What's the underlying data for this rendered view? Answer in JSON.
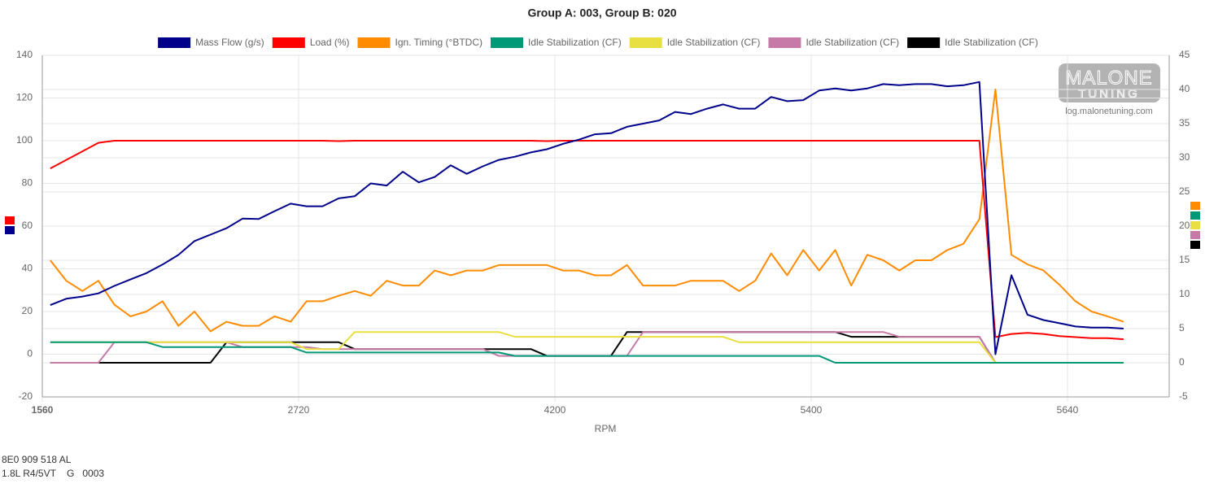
{
  "chart_data": {
    "type": "line",
    "title": "Group A: 003, Group B: 020",
    "x_label": "RPM",
    "categories": [
      "1560",
      null,
      null,
      null,
      null,
      null,
      null,
      null,
      null,
      null,
      null,
      null,
      null,
      null,
      null,
      null,
      "2720",
      null,
      null,
      null,
      null,
      null,
      null,
      null,
      null,
      null,
      null,
      null,
      null,
      null,
      null,
      null,
      "4200",
      null,
      null,
      null,
      null,
      null,
      null,
      null,
      null,
      null,
      null,
      null,
      null,
      null,
      null,
      null,
      "5400",
      null,
      null,
      null,
      null,
      null,
      null,
      null,
      null,
      null,
      null,
      null,
      null,
      null,
      null,
      null,
      "5640",
      null,
      null,
      null
    ],
    "ylim": [
      -20,
      140
    ],
    "yticks": [
      -20,
      0,
      20,
      40,
      60,
      80,
      100,
      120,
      140
    ],
    "y2lim": [
      -5,
      45
    ],
    "y2ticks": [
      -5,
      0,
      5,
      10,
      15,
      20,
      25,
      30,
      35,
      40,
      45
    ],
    "grid": true,
    "legend": "top",
    "series": [
      {
        "name": "Mass Flow (g/s)",
        "color": "#00008b",
        "values": [
          23,
          26,
          27,
          28.5,
          32,
          35,
          38,
          42,
          46.5,
          53,
          56,
          59,
          63.5,
          63.3,
          67,
          70.5,
          69.3,
          69.3,
          73,
          74,
          80,
          79,
          85.5,
          80.5,
          83,
          88.5,
          84.5,
          88,
          91,
          92.5,
          94.5,
          96,
          98.5,
          100.5,
          103,
          103.5,
          106.5,
          108,
          109.5,
          113.5,
          112.5,
          115,
          117,
          115,
          115,
          120.5,
          118.5,
          119,
          123.5,
          124.5,
          123.5,
          124.5,
          126.5,
          126,
          126.5,
          126.5,
          125.5,
          126,
          127.5,
          0,
          37,
          18.5,
          16,
          14.5,
          13,
          12.5,
          12.5,
          12
        ]
      },
      {
        "name": "Load (%)",
        "color": "#ff0000",
        "values": [
          87,
          91,
          95,
          99,
          100,
          100,
          100,
          100,
          100,
          100,
          100,
          100,
          100,
          100,
          100,
          100,
          100,
          100,
          99.8,
          100,
          100,
          100,
          100,
          100,
          100,
          100,
          100,
          100,
          100,
          100,
          100,
          99.8,
          100,
          100,
          100,
          100,
          100,
          100,
          100,
          100,
          100,
          100,
          100,
          100,
          100,
          100,
          100,
          100,
          100,
          100,
          100,
          100,
          100,
          100,
          100,
          100,
          100,
          100,
          100,
          8,
          9.5,
          10,
          9.5,
          8.5,
          8,
          7.5,
          7.5,
          7
        ]
      },
      {
        "name": "Ign. Timing (°BTDC)",
        "color": "#ff8c00",
        "axis": "y2",
        "values": [
          15,
          12,
          10.5,
          12,
          8.5,
          6.8,
          7.5,
          9,
          5.4,
          7.5,
          4.6,
          6,
          5.4,
          5.4,
          6.8,
          6,
          9,
          9,
          9.8,
          10.5,
          9.8,
          12,
          11.3,
          11.3,
          13.5,
          12.8,
          13.5,
          13.5,
          14.3,
          14.3,
          14.3,
          14.3,
          13.5,
          13.5,
          12.8,
          12.8,
          14.3,
          11.3,
          11.3,
          11.3,
          12,
          12,
          12,
          10.5,
          12,
          16,
          12.8,
          16.5,
          13.5,
          16.5,
          11.3,
          15.8,
          15,
          13.5,
          15,
          15,
          16.5,
          17.4,
          21,
          40,
          15.8,
          14.4,
          13.5,
          11.4,
          9,
          7.5,
          6.8,
          6
        ]
      },
      {
        "name": "Idle Stabilization (CF)",
        "color": "#009977",
        "axis": "y2",
        "values": [
          3,
          3,
          3,
          3,
          3,
          3,
          3,
          2.3,
          2.3,
          2.3,
          2.3,
          2.3,
          2.3,
          2.3,
          2.3,
          2.3,
          1.5,
          1.5,
          1.5,
          1.5,
          1.5,
          1.5,
          1.5,
          1.5,
          1.5,
          1.5,
          1.5,
          1.5,
          1.5,
          1,
          1,
          1,
          1,
          1,
          1,
          1,
          1,
          1,
          1,
          1,
          1,
          1,
          1,
          1,
          1,
          1,
          1,
          1,
          1,
          0,
          0,
          0,
          0,
          0,
          0,
          0,
          0,
          0,
          0,
          0,
          0,
          0,
          0,
          0,
          0,
          0,
          0,
          0
        ]
      },
      {
        "name": "Idle Stabilization (CF)",
        "color": "#e8e040",
        "axis": "y2",
        "values": [
          3,
          3,
          3,
          3,
          3,
          3,
          3,
          3,
          3,
          3,
          3,
          3,
          3,
          3,
          3,
          3,
          2,
          2,
          2,
          4.5,
          4.5,
          4.5,
          4.5,
          4.5,
          4.5,
          4.5,
          4.5,
          4.5,
          4.5,
          3.8,
          3.8,
          3.8,
          3.8,
          3.8,
          3.8,
          3.8,
          3.8,
          3.8,
          3.8,
          3.8,
          3.8,
          3.8,
          3.8,
          3,
          3,
          3,
          3,
          3,
          3,
          3,
          3,
          3,
          3,
          3,
          3,
          3,
          3,
          3,
          3,
          0,
          0,
          0,
          0,
          0,
          0,
          0,
          0,
          0
        ]
      },
      {
        "name": "Idle Stabilization (CF)",
        "color": "#c77aa8",
        "axis": "y2",
        "values": [
          0,
          0,
          0,
          0,
          3,
          3,
          3,
          3,
          3,
          3,
          3,
          3,
          2.3,
          2.3,
          2.3,
          2.3,
          2.3,
          2,
          2,
          2,
          2,
          2,
          2,
          2,
          2,
          2,
          2,
          2,
          1,
          1,
          1,
          1,
          1,
          1,
          1,
          1,
          1,
          4.5,
          4.5,
          4.5,
          4.5,
          4.5,
          4.5,
          4.5,
          4.5,
          4.5,
          4.5,
          4.5,
          4.5,
          4.5,
          4.5,
          4.5,
          4.5,
          3.8,
          3.8,
          3.8,
          3.8,
          3.8,
          3.8,
          0,
          0,
          0,
          0,
          0,
          0,
          0,
          0,
          0
        ]
      },
      {
        "name": "Idle Stabilization (CF)",
        "color": "#000000",
        "axis": "y2",
        "values": [
          0,
          0,
          0,
          0,
          0,
          0,
          0,
          0,
          0,
          0,
          0,
          3,
          3,
          3,
          3,
          3,
          3,
          3,
          3,
          2,
          2,
          2,
          2,
          2,
          2,
          2,
          2,
          2,
          2,
          2,
          2,
          1,
          1,
          1,
          1,
          1,
          4.5,
          4.5,
          4.5,
          4.5,
          4.5,
          4.5,
          4.5,
          4.5,
          4.5,
          4.5,
          4.5,
          4.5,
          4.5,
          4.5,
          3.8,
          3.8,
          3.8,
          3.8,
          3.8,
          3.8,
          3.8,
          3.8,
          3.8,
          0,
          0,
          0,
          0,
          0,
          0,
          0,
          0,
          0
        ]
      }
    ]
  },
  "watermark": {
    "brand": "MALONE",
    "sub": "TUNING",
    "url": "log.malonetuning.com"
  },
  "footer": [
    "8E0 909 518 AL",
    "1.8L R4/5VT    G   0003"
  ]
}
